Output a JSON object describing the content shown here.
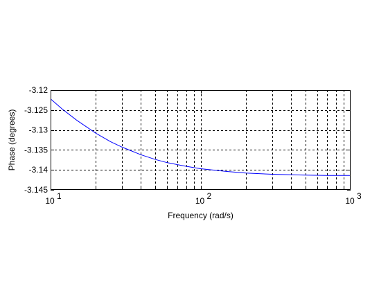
{
  "chart_data": {
    "type": "line",
    "title": "",
    "xlabel": "Frequency (rad/s)",
    "ylabel": "Phase (degrees)",
    "xscale": "log",
    "xlim": [
      10,
      1000
    ],
    "ylim": [
      -3.145,
      -3.12
    ],
    "grid": true,
    "grid_style": "dotted",
    "legend": "none",
    "x_ticks": [
      {
        "value": 10,
        "base": "10",
        "exp": "1"
      },
      {
        "value": 100,
        "base": "10",
        "exp": "2"
      },
      {
        "value": 1000,
        "base": "10",
        "exp": "3"
      }
    ],
    "y_ticks": [
      {
        "value": -3.12,
        "label": "-3.12"
      },
      {
        "value": -3.125,
        "label": "-3.125"
      },
      {
        "value": -3.13,
        "label": "-3.13"
      },
      {
        "value": -3.135,
        "label": "-3.135"
      },
      {
        "value": -3.14,
        "label": "-3.14"
      },
      {
        "value": -3.145,
        "label": "-3.145"
      }
    ],
    "series": [
      {
        "color": "#0000ff",
        "x": [
          10,
          12,
          15,
          20,
          25,
          30,
          40,
          50,
          60,
          80,
          100,
          150,
          200,
          300,
          500,
          700,
          1000
        ],
        "values": [
          -3.1222,
          -3.1248,
          -3.1276,
          -3.1308,
          -3.1329,
          -3.1343,
          -3.1362,
          -3.1374,
          -3.1382,
          -3.1391,
          -3.1397,
          -3.1404,
          -3.1408,
          -3.1411,
          -3.1413,
          -3.1414,
          -3.1414
        ]
      }
    ]
  }
}
